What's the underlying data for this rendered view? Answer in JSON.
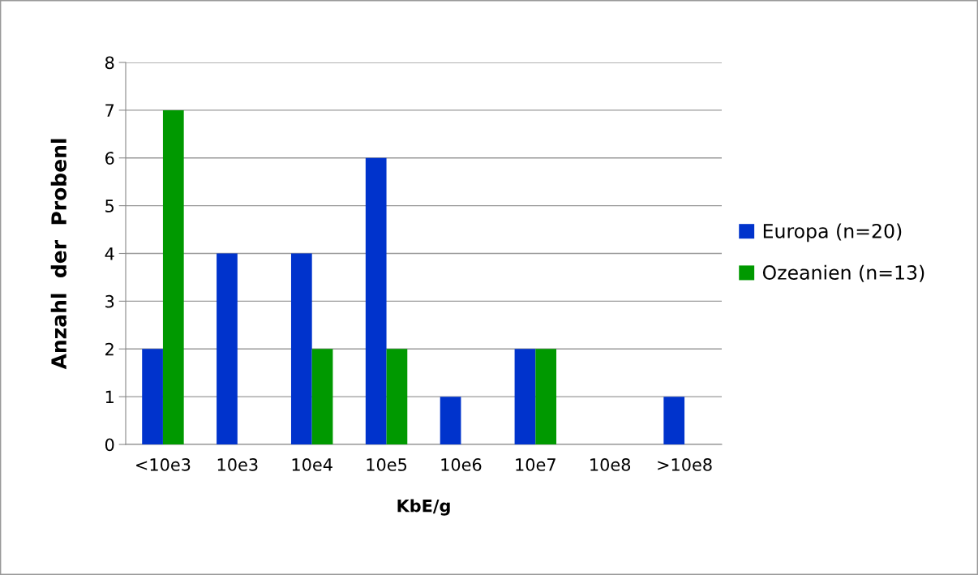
{
  "chart_data": {
    "type": "bar",
    "xlabel": "KbE/g",
    "ylabel": "Anzahl  der  Probenl",
    "categories": [
      "<10e3",
      "10e3",
      "10e4",
      "10e5",
      "10e6",
      "10e7",
      "10e8",
      ">10e8"
    ],
    "series": [
      {
        "name": "Europa (n=20)",
        "color": "#0033cc",
        "values": [
          2,
          4,
          4,
          6,
          1,
          2,
          0,
          1
        ]
      },
      {
        "name": "Ozeanien (n=13)",
        "color": "#009900",
        "values": [
          7,
          0,
          2,
          2,
          0,
          2,
          0,
          0
        ]
      }
    ],
    "ylim": [
      0,
      8
    ],
    "yticks": [
      0,
      1,
      2,
      3,
      4,
      5,
      6,
      7,
      8
    ],
    "grid": "y",
    "legend": "right"
  }
}
